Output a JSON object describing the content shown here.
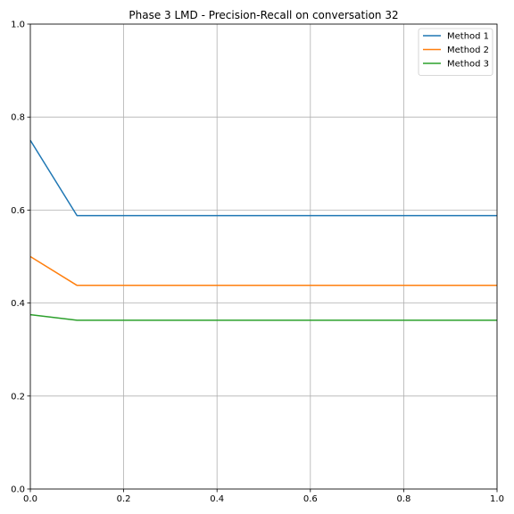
{
  "chart_data": {
    "type": "line",
    "title": "Phase 3 LMD - Precision-Recall on conversation 32",
    "xlabel": "",
    "ylabel": "",
    "xlim": [
      0,
      1
    ],
    "ylim": [
      0,
      1
    ],
    "xticks": [
      "0.0",
      "0.2",
      "0.4",
      "0.6",
      "0.8",
      "1.0"
    ],
    "yticks": [
      "0.0",
      "0.2",
      "0.4",
      "0.6",
      "0.8",
      "1.0"
    ],
    "grid": true,
    "legend_position": "top-right",
    "series": [
      {
        "name": "Method 1",
        "color": "#1f77b4",
        "x": [
          0.0,
          0.1,
          1.0
        ],
        "y": [
          0.75,
          0.588,
          0.588
        ]
      },
      {
        "name": "Method 2",
        "color": "#ff7f0e",
        "x": [
          0.0,
          0.1,
          1.0
        ],
        "y": [
          0.5,
          0.438,
          0.438
        ]
      },
      {
        "name": "Method 3",
        "color": "#2ca02c",
        "x": [
          0.0,
          0.1,
          1.0
        ],
        "y": [
          0.375,
          0.363,
          0.363
        ]
      }
    ]
  }
}
